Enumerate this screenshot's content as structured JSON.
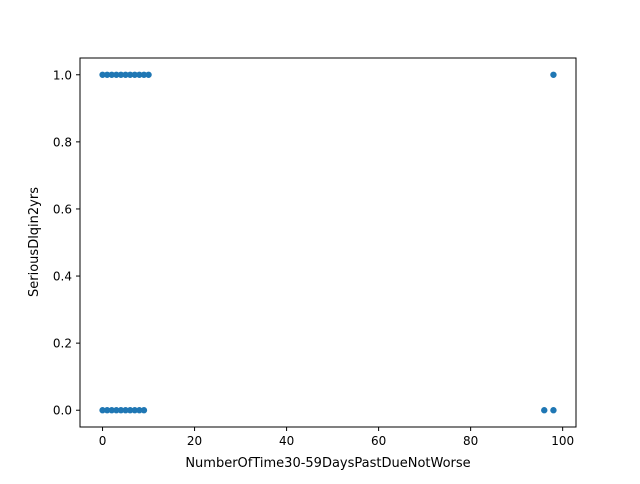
{
  "chart_data": {
    "type": "scatter",
    "title": "",
    "xlabel": "NumberOfTime30-59DaysPastDueNotWorse",
    "ylabel": "SeriousDlqin2yrs",
    "xlim": [
      -4.9,
      102.9
    ],
    "ylim": [
      -0.05,
      1.05
    ],
    "xticks": [
      0,
      20,
      40,
      60,
      80,
      100
    ],
    "yticks": [
      0.0,
      0.2,
      0.4,
      0.6,
      0.8,
      1.0
    ],
    "xtick_labels": [
      "0",
      "20",
      "40",
      "60",
      "80",
      "100"
    ],
    "ytick_labels": [
      "0.0",
      "0.2",
      "0.4",
      "0.6",
      "0.8",
      "1.0"
    ],
    "grid": false,
    "marker_color": "#1f77b4",
    "series": [
      {
        "points": [
          {
            "x": 0,
            "y": 1
          },
          {
            "x": 1,
            "y": 1
          },
          {
            "x": 2,
            "y": 1
          },
          {
            "x": 3,
            "y": 1
          },
          {
            "x": 4,
            "y": 1
          },
          {
            "x": 5,
            "y": 1
          },
          {
            "x": 6,
            "y": 1
          },
          {
            "x": 7,
            "y": 1
          },
          {
            "x": 8,
            "y": 1
          },
          {
            "x": 9,
            "y": 1
          },
          {
            "x": 10,
            "y": 1
          },
          {
            "x": 98,
            "y": 1
          },
          {
            "x": 0,
            "y": 0
          },
          {
            "x": 1,
            "y": 0
          },
          {
            "x": 2,
            "y": 0
          },
          {
            "x": 3,
            "y": 0
          },
          {
            "x": 4,
            "y": 0
          },
          {
            "x": 5,
            "y": 0
          },
          {
            "x": 6,
            "y": 0
          },
          {
            "x": 7,
            "y": 0
          },
          {
            "x": 8,
            "y": 0
          },
          {
            "x": 9,
            "y": 0
          },
          {
            "x": 96,
            "y": 0
          },
          {
            "x": 98,
            "y": 0
          }
        ]
      }
    ]
  }
}
